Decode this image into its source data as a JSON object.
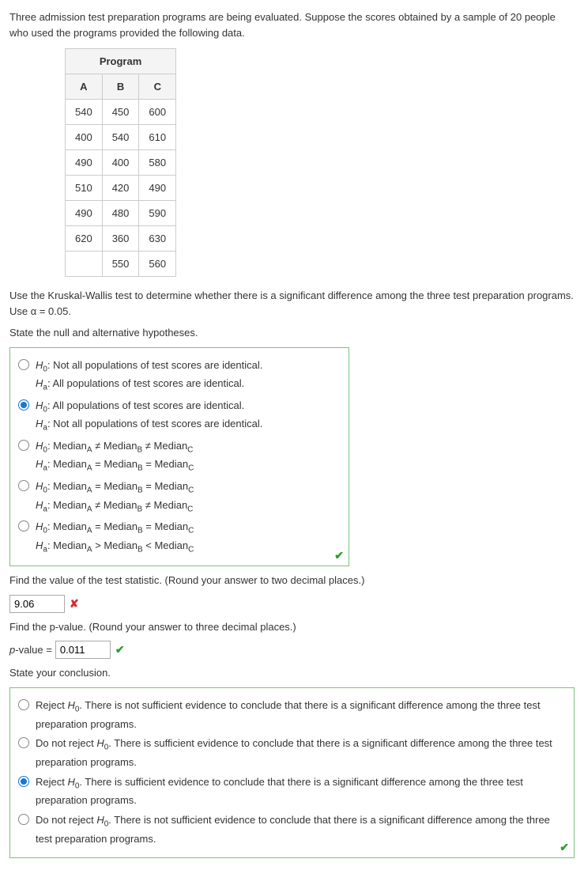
{
  "intro": "Three admission test preparation programs are being evaluated. Suppose the scores obtained by a sample of 20 people who used the programs provided the following data.",
  "table": {
    "group_header": "Program",
    "columns": [
      "A",
      "B",
      "C"
    ],
    "rows": [
      [
        "540",
        "450",
        "600"
      ],
      [
        "400",
        "540",
        "610"
      ],
      [
        "490",
        "400",
        "580"
      ],
      [
        "510",
        "420",
        "490"
      ],
      [
        "490",
        "480",
        "590"
      ],
      [
        "620",
        "360",
        "630"
      ],
      [
        "",
        "550",
        "560"
      ]
    ],
    "border_color": "#cccccc",
    "header_bg": "#f4f4f4"
  },
  "kw_instruction": "Use the Kruskal-Wallis test to determine whether there is a significant difference among the three test preparation programs. Use α = 0.05.",
  "hyp_prompt": "State the null and alternative hypotheses.",
  "hypotheses": {
    "selected_index": 1,
    "options": [
      {
        "h0": "Not all populations of test scores are identical.",
        "ha": "All populations of test scores are identical.",
        "med": false
      },
      {
        "h0": "All populations of test scores are identical.",
        "ha": "Not all populations of test scores are identical.",
        "med": false
      },
      {
        "h0_rel": "≠",
        "ha_rel": "=",
        "med": true
      },
      {
        "h0_rel": "=",
        "ha_rel": "≠",
        "med": true
      },
      {
        "h0_rel": "=",
        "ha_rel": "><",
        "med": true
      }
    ]
  },
  "teststat_prompt": "Find the value of the test statistic. (Round your answer to two decimal places.)",
  "teststat_value": "9.06",
  "teststat_correct": false,
  "pvalue_prompt": "Find the p-value. (Round your answer to three decimal places.)",
  "pvalue_label": "p-value = ",
  "pvalue_value": "0.011",
  "pvalue_correct": true,
  "conclusion_prompt": "State your conclusion.",
  "conclusion": {
    "selected_index": 2,
    "options": [
      "Reject H₀. There is not sufficient evidence to conclude that there is a significant difference among the three test preparation programs.",
      "Do not reject H₀. There is sufficient evidence to conclude that there is a significant difference among the three test preparation programs.",
      "Reject H₀. There is sufficient evidence to conclude that there is a significant difference among the three test preparation programs.",
      "Do not reject H₀. There is not sufficient evidence to conclude that there is a significant difference among the three test preparation programs."
    ]
  },
  "colors": {
    "option_border": "#7fbf7f",
    "selected_radio": "#1976d2",
    "correct": "#2e9b2e",
    "wrong": "#d32f2f"
  }
}
